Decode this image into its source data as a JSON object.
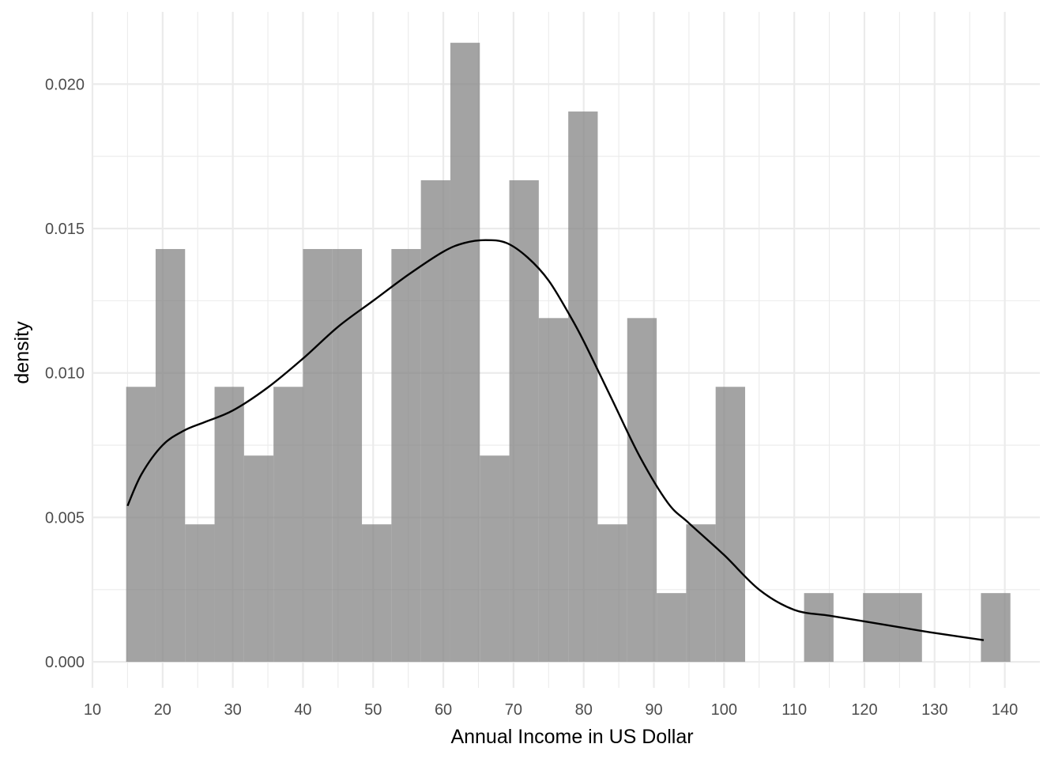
{
  "chart_data": {
    "type": "bar",
    "subtype": "histogram-with-density",
    "xlabel": "Annual Income in US Dollar",
    "ylabel": "density",
    "xlim": [
      10,
      145
    ],
    "ylim": [
      -0.0009,
      0.0225
    ],
    "x_ticks": [
      10,
      20,
      30,
      40,
      50,
      60,
      70,
      80,
      90,
      100,
      110,
      120,
      130,
      140
    ],
    "y_ticks": [
      0.0,
      0.005,
      0.01,
      0.015,
      0.02
    ],
    "y_tick_labels": [
      "0.000",
      "0.005",
      "0.010",
      "0.015",
      "0.020"
    ],
    "grid": true,
    "legend": "none",
    "colors": {
      "bars": "#808080",
      "density_line": "#000000",
      "grid": "#ebebeb"
    },
    "bins": [
      {
        "x0": 14.8,
        "x1": 19.0,
        "density": 0.00952
      },
      {
        "x0": 19.0,
        "x1": 23.2,
        "density": 0.01429
      },
      {
        "x0": 23.2,
        "x1": 27.4,
        "density": 0.00476
      },
      {
        "x0": 27.4,
        "x1": 31.6,
        "density": 0.00952
      },
      {
        "x0": 31.6,
        "x1": 35.8,
        "density": 0.00714
      },
      {
        "x0": 35.8,
        "x1": 40.0,
        "density": 0.00952
      },
      {
        "x0": 40.0,
        "x1": 44.2,
        "density": 0.01429
      },
      {
        "x0": 44.2,
        "x1": 48.4,
        "density": 0.01429
      },
      {
        "x0": 48.4,
        "x1": 52.6,
        "density": 0.00476
      },
      {
        "x0": 52.6,
        "x1": 56.8,
        "density": 0.01429
      },
      {
        "x0": 56.8,
        "x1": 61.0,
        "density": 0.01667
      },
      {
        "x0": 61.0,
        "x1": 65.2,
        "density": 0.02143
      },
      {
        "x0": 65.2,
        "x1": 69.4,
        "density": 0.00714
      },
      {
        "x0": 69.4,
        "x1": 73.6,
        "density": 0.01667
      },
      {
        "x0": 73.6,
        "x1": 77.8,
        "density": 0.0119
      },
      {
        "x0": 77.8,
        "x1": 82.0,
        "density": 0.01905
      },
      {
        "x0": 82.0,
        "x1": 86.2,
        "density": 0.00476
      },
      {
        "x0": 86.2,
        "x1": 90.4,
        "density": 0.0119
      },
      {
        "x0": 90.4,
        "x1": 94.6,
        "density": 0.00238
      },
      {
        "x0": 94.6,
        "x1": 98.8,
        "density": 0.00476
      },
      {
        "x0": 98.8,
        "x1": 103.0,
        "density": 0.00952
      },
      {
        "x0": 103.0,
        "x1": 107.2,
        "density": 0
      },
      {
        "x0": 107.2,
        "x1": 111.4,
        "density": 0
      },
      {
        "x0": 111.4,
        "x1": 115.6,
        "density": 0.00238
      },
      {
        "x0": 115.6,
        "x1": 119.8,
        "density": 0
      },
      {
        "x0": 119.8,
        "x1": 124.0,
        "density": 0.00238
      },
      {
        "x0": 124.0,
        "x1": 128.2,
        "density": 0.00238
      },
      {
        "x0": 128.2,
        "x1": 132.4,
        "density": 0
      },
      {
        "x0": 132.4,
        "x1": 136.6,
        "density": 0
      },
      {
        "x0": 136.6,
        "x1": 140.8,
        "density": 0.00238
      }
    ],
    "density_curve": {
      "x": [
        15,
        17,
        20,
        23,
        26,
        30,
        35,
        40,
        45,
        50,
        55,
        60,
        63,
        66,
        69,
        72,
        75,
        78,
        80,
        84,
        88,
        92,
        95,
        100,
        105,
        110,
        115,
        120,
        125,
        130,
        137
      ],
      "y": [
        0.0054,
        0.0065,
        0.0075,
        0.008,
        0.0083,
        0.0087,
        0.0095,
        0.0105,
        0.0116,
        0.0125,
        0.0134,
        0.0142,
        0.0145,
        0.0146,
        0.0145,
        0.014,
        0.0132,
        0.012,
        0.0111,
        0.0091,
        0.0071,
        0.0055,
        0.0048,
        0.0037,
        0.0025,
        0.0018,
        0.0016,
        0.0014,
        0.0012,
        0.001,
        0.00075
      ]
    }
  }
}
